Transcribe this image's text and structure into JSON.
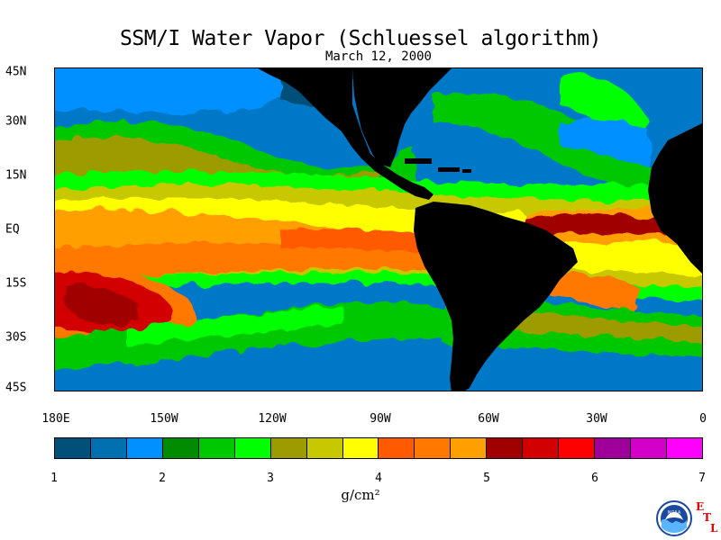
{
  "title": "SSM/I Water Vapor (Schluessel algorithm)",
  "subtitle": "March 12, 2000",
  "latitude_labels": [
    "45N",
    "30N",
    "15N",
    "EQ",
    "15S",
    "30S",
    "45S"
  ],
  "longitude_labels": [
    "180E",
    "150W",
    "120W",
    "90W",
    "60W",
    "30W",
    "0"
  ],
  "colorbar": {
    "colors": [
      "#00507a",
      "#0070b0",
      "#0090ff",
      "#008c00",
      "#00c800",
      "#00ff00",
      "#9c9c00",
      "#c8c800",
      "#ffff00",
      "#ff5a00",
      "#ff7800",
      "#ffa000",
      "#a00000",
      "#d20000",
      "#ff0000",
      "#a0009a",
      "#d200c8",
      "#ff00ff"
    ],
    "tick_labels": [
      "1",
      "2",
      "3",
      "4",
      "5",
      "6",
      "7"
    ],
    "units": "g/cm²",
    "range": [
      1,
      7
    ]
  },
  "logo": {
    "text": "NOAA",
    "etl_letters": [
      "E",
      "T",
      "L"
    ]
  },
  "colors": {
    "land": "#000000",
    "background": "#ffffff"
  }
}
